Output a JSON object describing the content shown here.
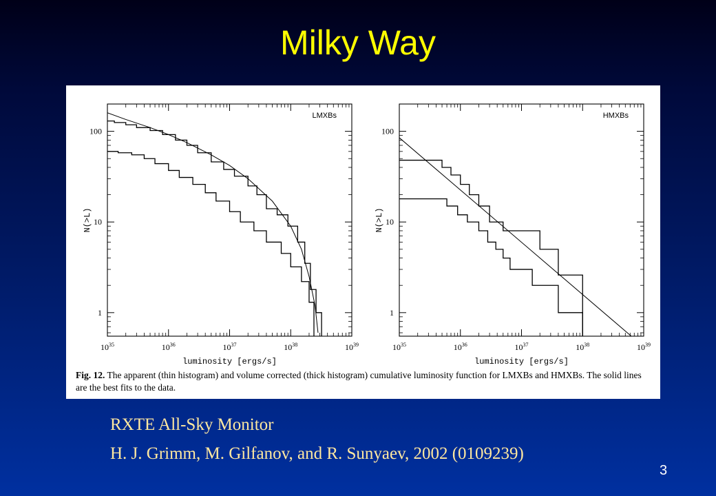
{
  "slide": {
    "title": "Milky Way",
    "credit_line_1": "RXTE All-Sky Monitor",
    "credit_line_2": "H. J. Grimm, M. Gilfanov, and R. Sunyaev, 2002 (0109239)",
    "page_number": "3"
  },
  "figure": {
    "caption_label": "Fig. 12.",
    "caption_text": " The apparent (thin histogram) and volume corrected (thick histogram) cumulative luminosity function for LMXBs and HMXBs. The solid lines are the best fits to the data."
  },
  "chart_data": [
    {
      "type": "line",
      "panel_label": "LMXBs",
      "xlabel": "luminosity [ergs/s]",
      "ylabel": "N(>L)",
      "x_scale": "log",
      "y_scale": "log",
      "xlim": [
        1e+35,
        1e+39
      ],
      "ylim": [
        0.55,
        200
      ],
      "x_ticks": [
        1e+35,
        1e+36,
        1e+37,
        1e+38,
        1e+39
      ],
      "x_tick_labels": [
        "10^35",
        "10^36",
        "10^37",
        "10^38",
        "10^39"
      ],
      "y_ticks": [
        1,
        10,
        100
      ],
      "y_tick_labels": [
        "1",
        "10",
        "100"
      ],
      "series": [
        {
          "kind": "step",
          "points": [
            [
              1e+35,
              130
            ],
            [
              1.3e+35,
              125
            ],
            [
              2e+35,
              118
            ],
            [
              3e+35,
              110
            ],
            [
              5e+35,
              102
            ],
            [
              8e+35,
              92
            ],
            [
              1.3e+36,
              80
            ],
            [
              2e+36,
              70
            ],
            [
              3e+36,
              58
            ],
            [
              5e+36,
              46
            ],
            [
              8e+36,
              38
            ],
            [
              1.2e+37,
              32
            ],
            [
              2e+37,
              25
            ],
            [
              2.8e+37,
              20
            ],
            [
              4e+37,
              14
            ],
            [
              6e+37,
              12
            ],
            [
              9e+37,
              9
            ],
            [
              1.3e+38,
              6
            ],
            [
              1.7e+38,
              3.5
            ],
            [
              2.1e+38,
              1.8
            ],
            [
              2.6e+38,
              1.0
            ],
            [
              3.2e+38,
              0.55
            ]
          ]
        },
        {
          "kind": "step",
          "points": [
            [
              1e+35,
              60
            ],
            [
              1.5e+35,
              58
            ],
            [
              2.5e+35,
              55
            ],
            [
              4e+35,
              50
            ],
            [
              6e+35,
              44
            ],
            [
              1e+36,
              37
            ],
            [
              1.5e+36,
              31
            ],
            [
              2.5e+36,
              26
            ],
            [
              4e+36,
              21
            ],
            [
              6e+36,
              17
            ],
            [
              1e+37,
              13
            ],
            [
              1.5e+37,
              10
            ],
            [
              2.5e+37,
              8
            ],
            [
              4e+37,
              6
            ],
            [
              7e+37,
              4.5
            ],
            [
              1e+38,
              3.2
            ],
            [
              1.5e+38,
              2.2
            ],
            [
              2e+38,
              1.3
            ],
            [
              2.4e+38,
              0.55
            ]
          ]
        },
        {
          "kind": "fit",
          "points": [
            [
              1e+35,
              160
            ],
            [
              2e+35,
              135
            ],
            [
              5e+35,
              110
            ],
            [
              1e+36,
              92
            ],
            [
              2e+36,
              75
            ],
            [
              5e+36,
              55
            ],
            [
              1e+37,
              42
            ],
            [
              2e+37,
              30
            ],
            [
              5e+37,
              17
            ],
            [
              1e+38,
              9
            ],
            [
              1.5e+38,
              5
            ],
            [
              2e+38,
              2.5
            ],
            [
              2.5e+38,
              1.2
            ],
            [
              2.8e+38,
              0.6
            ]
          ]
        }
      ]
    },
    {
      "type": "line",
      "panel_label": "HMXBs",
      "xlabel": "luminosity [ergs/s]",
      "ylabel": "N(>L)",
      "x_scale": "log",
      "y_scale": "log",
      "xlim": [
        1e+35,
        1e+39
      ],
      "ylim": [
        0.55,
        200
      ],
      "x_ticks": [
        1e+35,
        1e+36,
        1e+37,
        1e+38,
        1e+39
      ],
      "x_tick_labels": [
        "10^35",
        "10^36",
        "10^37",
        "10^38",
        "10^39"
      ],
      "y_ticks": [
        1,
        10,
        100
      ],
      "y_tick_labels": [
        "1",
        "10",
        "100"
      ],
      "series": [
        {
          "kind": "step",
          "points": [
            [
              1e+35,
              48
            ],
            [
              4e+35,
              48
            ],
            [
              5e+35,
              40
            ],
            [
              7e+35,
              33
            ],
            [
              1e+36,
              26
            ],
            [
              1.4e+36,
              20
            ],
            [
              2e+36,
              15
            ],
            [
              3e+36,
              10
            ],
            [
              5e+36,
              8
            ],
            [
              2e+37,
              5
            ],
            [
              4e+37,
              2.6
            ],
            [
              1e+38,
              1.0
            ],
            [
              1e+38,
              0.55
            ]
          ]
        },
        {
          "kind": "step",
          "points": [
            [
              1e+35,
              18
            ],
            [
              4e+35,
              18
            ],
            [
              6e+35,
              15
            ],
            [
              9e+35,
              12
            ],
            [
              1.3e+36,
              10
            ],
            [
              2e+36,
              8
            ],
            [
              2.8e+36,
              6
            ],
            [
              3.8e+36,
              5
            ],
            [
              5e+36,
              4
            ],
            [
              6.5e+36,
              3
            ],
            [
              1.5e+37,
              2
            ],
            [
              4e+37,
              1
            ],
            [
              1e+38,
              1
            ],
            [
              1e+38,
              0.55
            ]
          ]
        },
        {
          "kind": "fit",
          "points": [
            [
              1e+35,
              85
            ],
            [
              1e+39,
              0.42
            ]
          ]
        }
      ]
    }
  ]
}
